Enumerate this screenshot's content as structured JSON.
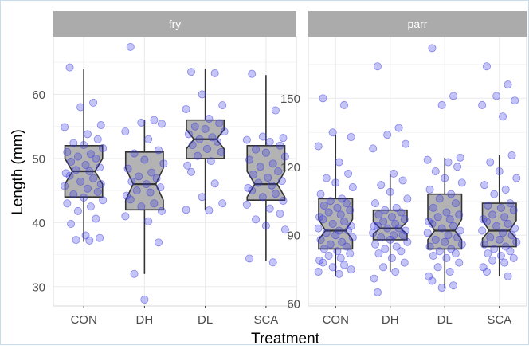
{
  "chart_data": {
    "type": "box",
    "xlabel": "Treatment",
    "ylabel": "Length (mm)",
    "categories": [
      "CON",
      "DH",
      "DL",
      "SCA"
    ],
    "colors": {
      "point": "#3a3ae0",
      "box_fill": "#b3b3b3",
      "strip": "#ababab",
      "grid": "#ebebeb"
    },
    "panels": [
      {
        "label": "fry",
        "ylim": [
          27,
          69
        ],
        "yticks": [
          30,
          40,
          50,
          60
        ],
        "groups": [
          {
            "category": "CON",
            "min": 37,
            "q1": 44,
            "median": 48,
            "q3": 52,
            "max": 64,
            "notch_low": 46,
            "notch_high": 50,
            "points": [
              64.2,
              58.7,
              58.0,
              55.2,
              54.9,
              53.8,
              53.0,
              52.4,
              52.1,
              51.6,
              51.0,
              50.7,
              50.3,
              50.0,
              49.5,
              49.0,
              48.6,
              48.2,
              48.0,
              47.7,
              47.3,
              46.9,
              46.4,
              46.0,
              45.7,
              45.3,
              44.8,
              44.4,
              43.9,
              43.5,
              43.0,
              42.5,
              41.8,
              40.6,
              39.8,
              38.0,
              37.6,
              37.3,
              37.2
            ]
          },
          {
            "category": "DH",
            "min": 32,
            "q1": 42,
            "median": 46,
            "q3": 51,
            "max": 56,
            "notch_low": 43.5,
            "notch_high": 48.5,
            "points": [
              67.4,
              56.0,
              55.6,
              55.4,
              54.2,
              53.0,
              51.3,
              50.8,
              49.8,
              49.2,
              48.4,
              47.8,
              47.2,
              46.9,
              46.4,
              46.0,
              45.5,
              45.0,
              44.7,
              44.2,
              43.6,
              43.0,
              42.5,
              41.8,
              41.0,
              40.2,
              36.9,
              32.0,
              28.0
            ]
          },
          {
            "category": "DL",
            "min": 42,
            "q1": 50,
            "median": 53,
            "q3": 56,
            "max": 64,
            "notch_low": 51.5,
            "notch_high": 54.5,
            "points": [
              63.5,
              63.3,
              60.0,
              58.3,
              57.7,
              56.2,
              55.5,
              55.0,
              54.6,
              54.2,
              53.8,
              53.3,
              53.0,
              52.6,
              52.1,
              51.5,
              51.0,
              50.4,
              49.6,
              48.9,
              47.9,
              46.1,
              44.0,
              43.0,
              42.0,
              41.9
            ]
          },
          {
            "category": "SCA",
            "min": 34,
            "q1": 43.5,
            "median": 46,
            "q3": 52,
            "max": 63,
            "notch_low": 44,
            "notch_high": 48,
            "points": [
              63.2,
              57.5,
              53.4,
              53.2,
              52.9,
              52.6,
              52.0,
              51.4,
              50.9,
              50.3,
              49.8,
              49.2,
              48.7,
              48.0,
              47.5,
              47.0,
              46.5,
              46.2,
              45.8,
              45.4,
              45.0,
              44.5,
              44.0,
              43.4,
              42.8,
              42.2,
              41.4,
              40.5,
              39.5,
              38.9,
              34.4,
              33.8
            ]
          }
        ]
      },
      {
        "label": "parr",
        "ylim": [
          59,
          177
        ],
        "yticks": [
          60,
          90,
          120,
          150
        ],
        "groups": [
          {
            "category": "CON",
            "min": 72,
            "q1": 84,
            "median": 92,
            "q3": 106,
            "max": 134,
            "notch_low": 88,
            "notch_high": 97,
            "points": [
              150,
              147,
              135,
              133,
              129,
              122,
              117,
              115,
              113,
              111,
              108,
              106,
              105,
              104,
              103,
              102,
              101,
              100,
              99,
              98,
              97,
              96,
              95,
              94,
              93,
              92,
              92,
              91,
              90,
              89,
              88,
              87,
              86,
              85,
              84,
              83,
              82,
              81,
              80,
              79,
              78,
              77,
              76,
              75,
              74,
              73
            ]
          },
          {
            "category": "DH",
            "min": 74,
            "q1": 88,
            "median": 93,
            "q3": 101,
            "max": 117,
            "notch_low": 90.5,
            "notch_high": 96,
            "points": [
              164,
              137,
              134,
              130,
              128,
              117,
              114,
              112,
              109,
              106,
              104,
              102,
              101,
              100,
              99,
              98,
              97,
              96,
              95,
              94,
              94,
              93,
              93,
              92,
              91,
              90,
              90,
              89,
              88,
              87,
              86,
              85,
              84,
              83,
              82,
              80,
              78,
              76,
              74,
              71,
              65
            ]
          },
          {
            "category": "DL",
            "min": 67,
            "q1": 84,
            "median": 92,
            "q3": 108,
            "max": 124,
            "notch_low": 88,
            "notch_high": 97,
            "points": [
              172,
              151,
              147,
              124,
              123,
              122,
              120,
              118,
              115,
              113,
              110,
              108,
              106,
              104,
              102,
              100,
              99,
              98,
              97,
              96,
              95,
              94,
              93,
              92,
              91,
              90,
              89,
              88,
              87,
              86,
              85,
              84,
              83,
              82,
              81,
              80,
              78,
              76,
              74,
              72,
              70,
              68,
              67
            ]
          },
          {
            "category": "SCA",
            "min": 72,
            "q1": 85,
            "median": 92,
            "q3": 104,
            "max": 125,
            "notch_low": 88.5,
            "notch_high": 96.5,
            "points": [
              164,
              156,
              151,
              149,
              147,
              142,
              125,
              122,
              118,
              115,
              112,
              110,
              108,
              104,
              103,
              102,
              101,
              99,
              98,
              97,
              96,
              95,
              94,
              93,
              92,
              91,
              90,
              89,
              88,
              87,
              86,
              85,
              84,
              83,
              82,
              81,
              80,
              79,
              78,
              76,
              74,
              72
            ]
          }
        ]
      }
    ]
  }
}
